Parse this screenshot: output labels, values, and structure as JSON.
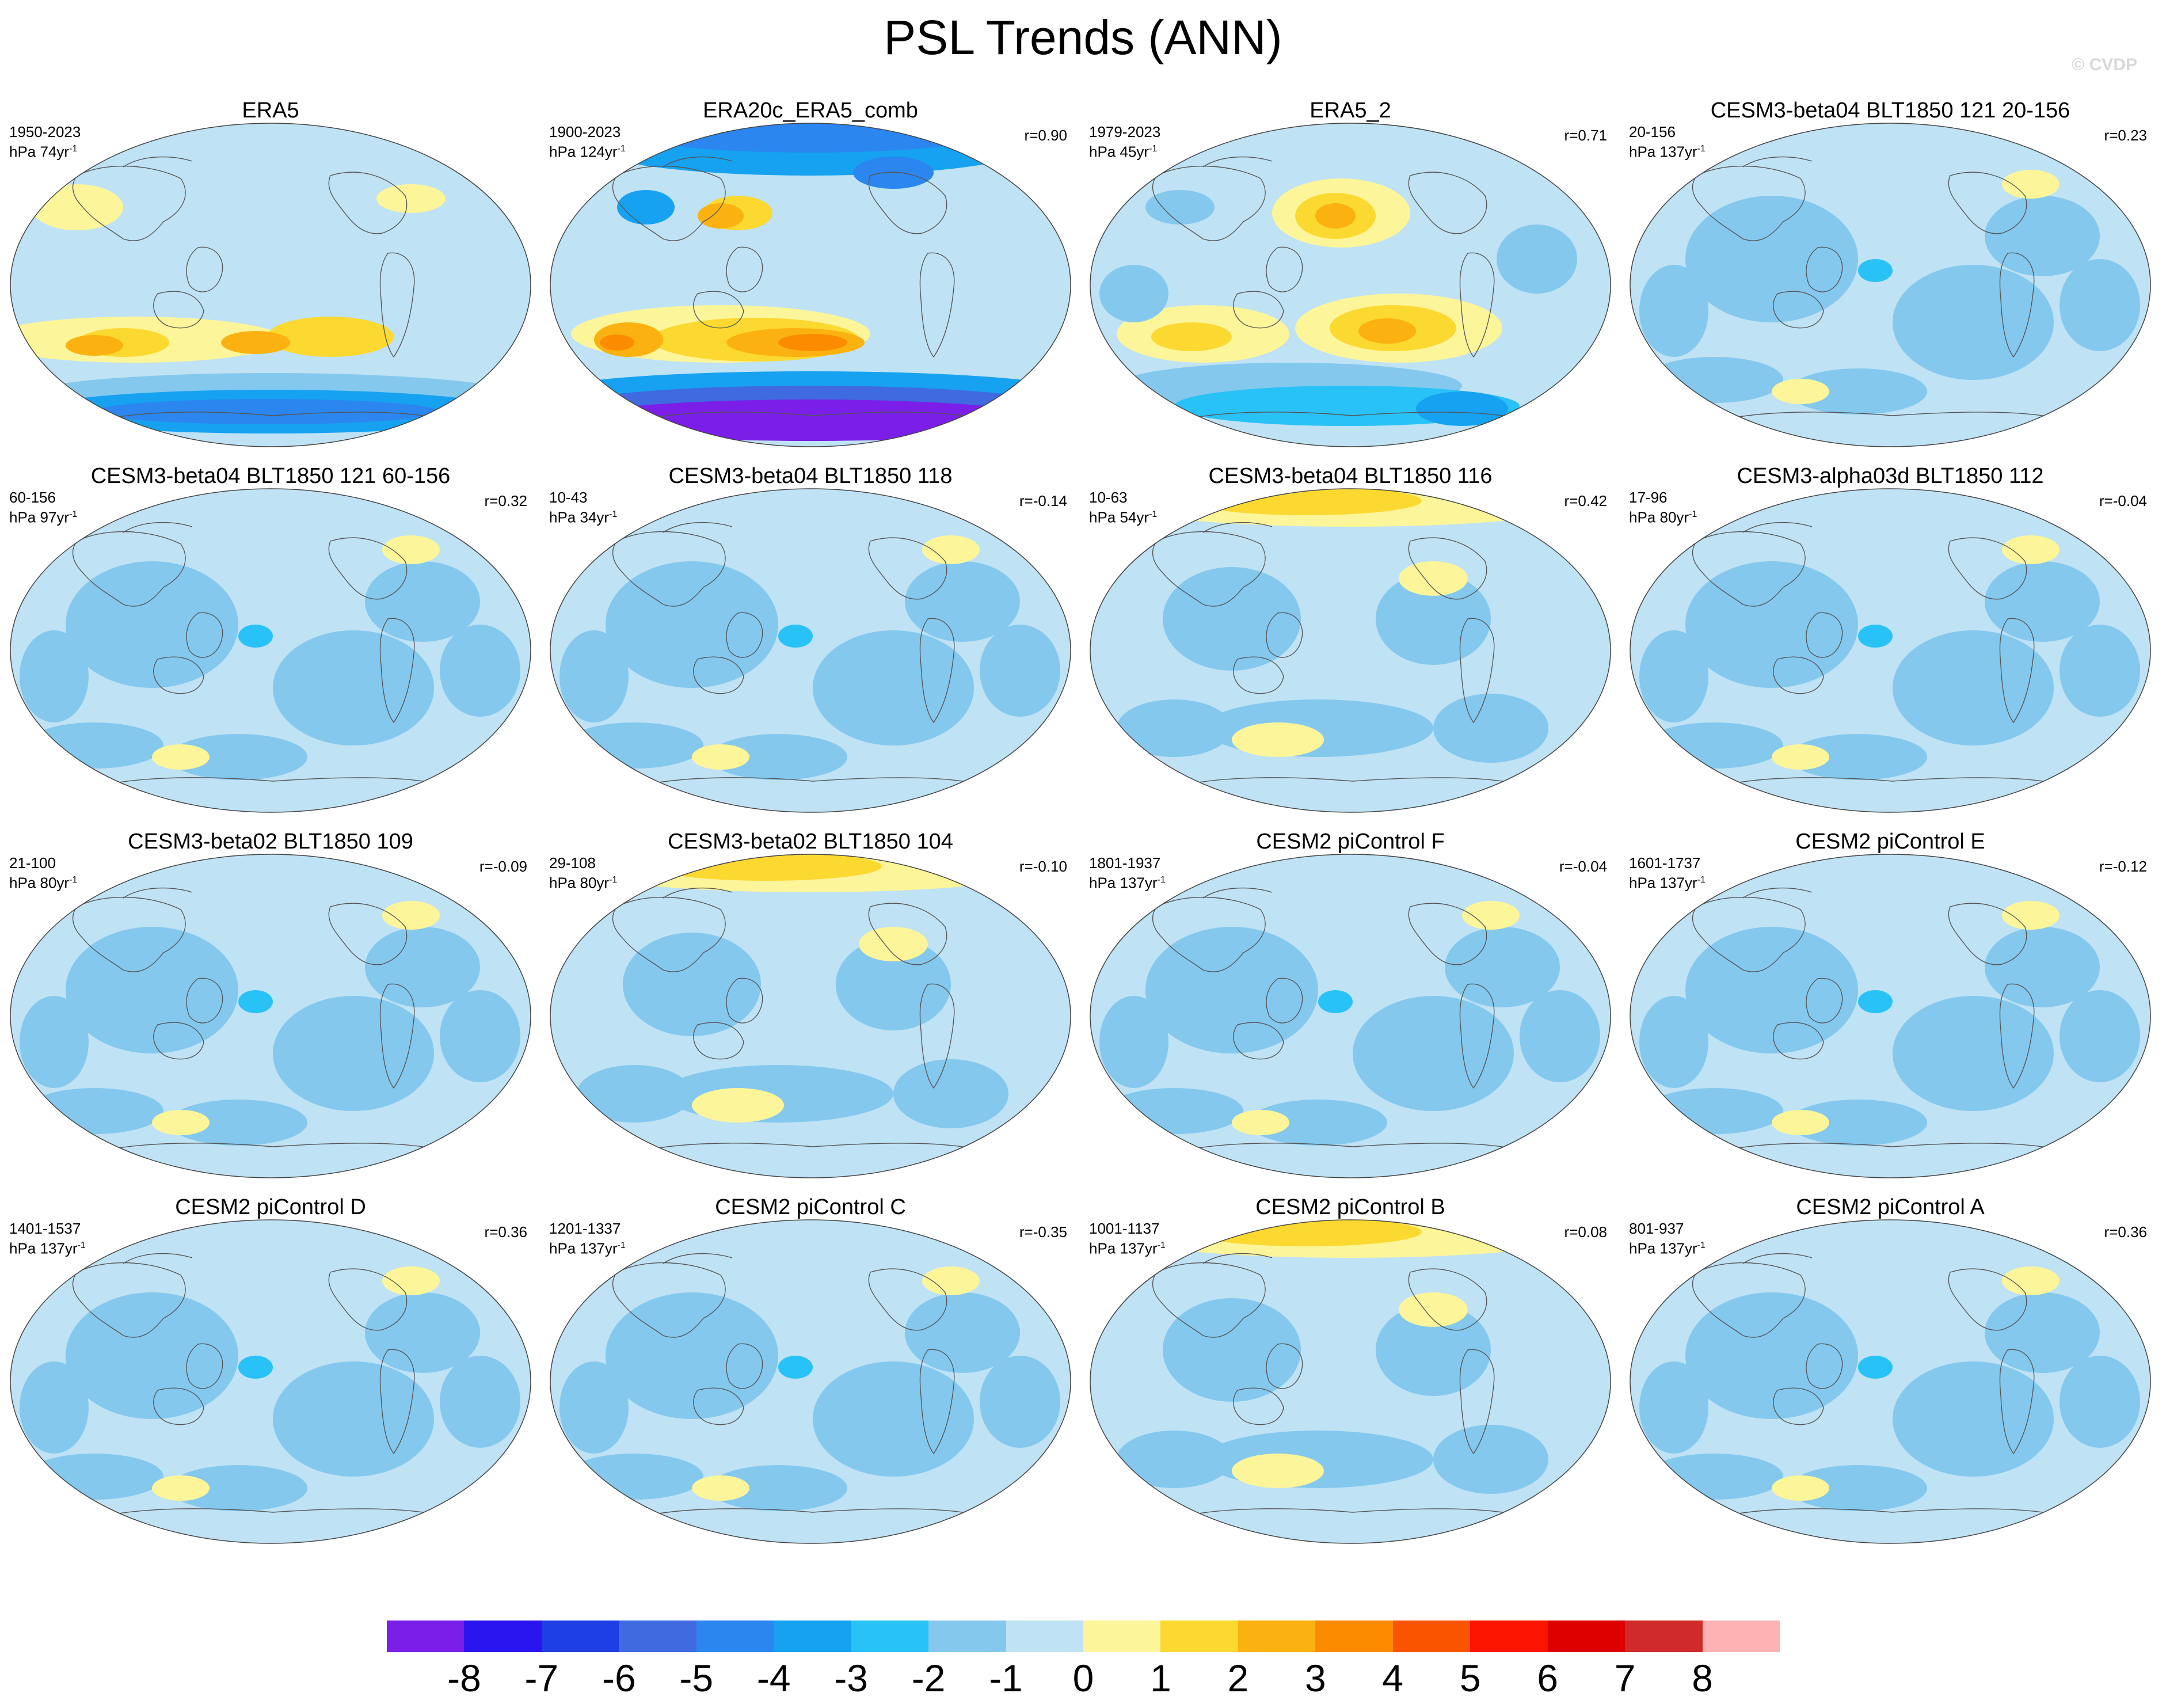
{
  "title": "PSL Trends (ANN)",
  "watermark": "© CVDP",
  "colorbar": {
    "labels": [
      "-8",
      "-7",
      "-6",
      "-5",
      "-4",
      "-3",
      "-2",
      "-1",
      "0",
      "1",
      "2",
      "3",
      "4",
      "5",
      "6",
      "7",
      "8"
    ],
    "colors": [
      "#7a1ee8",
      "#2a14f0",
      "#1e3ee6",
      "#3f6ae0",
      "#2b86f0",
      "#16a2f0",
      "#28c2f6",
      "#84c8ee",
      "#bfe2f4",
      "#fdf59a",
      "#fcd931",
      "#fbb210",
      "#fb8c00",
      "#fb5400",
      "#fb1400",
      "#de0000",
      "#d02a2a",
      "#fdb3b3"
    ]
  },
  "panels": [
    {
      "title": "ERA5",
      "years": "1950-2023",
      "units": "hPa 74yr",
      "r": "",
      "style": "era5"
    },
    {
      "title": "ERA20c_ERA5_comb",
      "years": "1900-2023",
      "units": "hPa 124yr",
      "r": "r=0.90",
      "style": "era20c"
    },
    {
      "title": "ERA5_2",
      "years": "1979-2023",
      "units": "hPa 45yr",
      "r": "r=0.71",
      "style": "era5_2"
    },
    {
      "title": "CESM3-beta04 BLT1850 121 20-156",
      "years": "20-156",
      "units": "hPa 137yr",
      "r": "r=0.23",
      "style": "model"
    },
    {
      "title": "CESM3-beta04 BLT1850 121 60-156",
      "years": "60-156",
      "units": "hPa 97yr",
      "r": "r=0.32",
      "style": "model"
    },
    {
      "title": "CESM3-beta04 BLT1850 118",
      "years": "10-43",
      "units": "hPa 34yr",
      "r": "r=-0.14",
      "style": "model"
    },
    {
      "title": "CESM3-beta04 BLT1850 116",
      "years": "10-63",
      "units": "hPa 54yr",
      "r": "r=0.42",
      "style": "model_n"
    },
    {
      "title": "CESM3-alpha03d BLT1850 112",
      "years": "17-96",
      "units": "hPa 80yr",
      "r": "r=-0.04",
      "style": "model"
    },
    {
      "title": "CESM3-beta02 BLT1850 109",
      "years": "21-100",
      "units": "hPa 80yr",
      "r": "r=-0.09",
      "style": "model"
    },
    {
      "title": "CESM3-beta02 BLT1850 104",
      "years": "29-108",
      "units": "hPa 80yr",
      "r": "r=-0.10",
      "style": "model_n"
    },
    {
      "title": "CESM2 piControl F",
      "years": "1801-1937",
      "units": "hPa 137yr",
      "r": "r=-0.04",
      "style": "model"
    },
    {
      "title": "CESM2 piControl E",
      "years": "1601-1737",
      "units": "hPa 137yr",
      "r": "r=-0.12",
      "style": "model"
    },
    {
      "title": "CESM2 piControl D",
      "years": "1401-1537",
      "units": "hPa 137yr",
      "r": "r=0.36",
      "style": "model"
    },
    {
      "title": "CESM2 piControl C",
      "years": "1201-1337",
      "units": "hPa 137yr",
      "r": "r=-0.35",
      "style": "model"
    },
    {
      "title": "CESM2 piControl B",
      "years": "1001-1137",
      "units": "hPa 137yr",
      "r": "r=0.08",
      "style": "model_n"
    },
    {
      "title": "CESM2 piControl A",
      "years": "801-937",
      "units": "hPa 137yr",
      "r": "r=0.36",
      "style": "model"
    }
  ]
}
